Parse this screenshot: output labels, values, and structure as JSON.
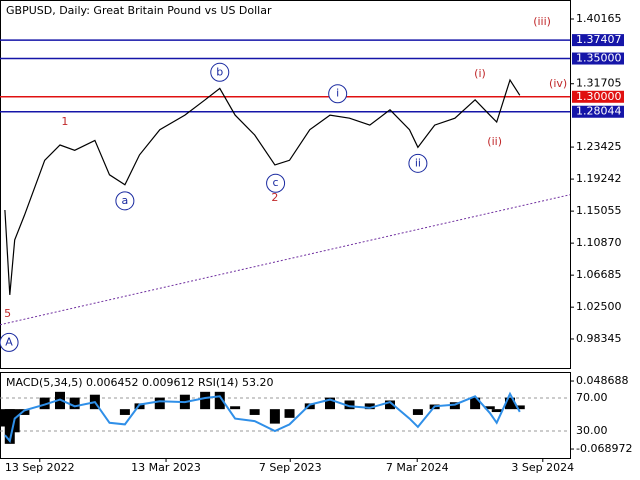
{
  "chart_data": [
    {
      "type": "line",
      "title": "GBPUSD, Daily:  Great Britain Pound vs US Dollar",
      "x": [
        -50,
        -43,
        -36,
        -22,
        7,
        29,
        50,
        79,
        100,
        122,
        143,
        172,
        208,
        237,
        258,
        280,
        308,
        337,
        358,
        387,
        416,
        444,
        473,
        502,
        530,
        542,
        566,
        595,
        624,
        645,
        655,
        674,
        688
      ],
      "series": [
        {
          "name": "GBPUSD",
          "color": "#000000",
          "values": [
            1.152,
            1.041,
            1.113,
            1.145,
            1.217,
            1.237,
            1.23,
            1.243,
            1.198,
            1.185,
            1.224,
            1.257,
            1.276,
            1.296,
            1.311,
            1.276,
            1.25,
            1.211,
            1.217,
            1.257,
            1.276,
            1.272,
            1.263,
            1.283,
            1.257,
            1.234,
            1.263,
            1.272,
            1.296,
            1.276,
            1.267,
            1.322,
            1.302
          ]
        }
      ],
      "xlim": [
        -57,
        760
      ],
      "ylim": [
        0.9455,
        1.4265
      ],
      "yticks": [
        1.40165,
        1.31705,
        1.23425,
        1.19242,
        1.15055,
        {
          "value": 1.1087,
          "label": "1.10870"
        },
        1.06685,
        {
          "value": 1.025,
          "label": "1.02500"
        },
        0.98345
      ],
      "levels": [
        {
          "value": 1.37407,
          "color": "#1515a8"
        },
        {
          "value": 1.35,
          "label": "1.35000",
          "color": "#1515a8"
        },
        {
          "value": 1.3,
          "label": "1.30000",
          "color": "#e01010"
        },
        {
          "value": 1.28044,
          "color": "#1515a8"
        }
      ],
      "trendline": {
        "x": [
          -57,
          760
        ],
        "y": [
          1.002,
          1.172
        ],
        "color": "#7030a0"
      },
      "annotations": [
        {
          "text": "1",
          "x": 36,
          "y": 1.267,
          "color": "#c0282a",
          "circled": false
        },
        {
          "text": "a",
          "x": 122,
          "y": 1.164,
          "color": "#1a2aa0",
          "circled": true
        },
        {
          "text": "b",
          "x": 258,
          "y": 1.332,
          "color": "#1a2aa0",
          "circled": true
        },
        {
          "text": "c",
          "x": 338,
          "y": 1.187,
          "color": "#1a2aa0",
          "circled": true
        },
        {
          "text": "2",
          "x": 337,
          "y": 1.168,
          "color": "#c0282a",
          "circled": false
        },
        {
          "text": "i",
          "x": 427,
          "y": 1.304,
          "color": "#1a2aa0",
          "circled": true
        },
        {
          "text": "ii",
          "x": 542,
          "y": 1.213,
          "color": "#1a2aa0",
          "circled": true
        },
        {
          "text": "(i)",
          "x": 631,
          "y": 1.33,
          "color": "#c0282a",
          "circled": false
        },
        {
          "text": "(ii)",
          "x": 652,
          "y": 1.241,
          "color": "#c0282a",
          "circled": false
        },
        {
          "text": "(iii)",
          "x": 720,
          "y": 1.398,
          "color": "#c0282a",
          "circled": false
        },
        {
          "text": "(iv)",
          "x": 743,
          "y": 1.317,
          "color": "#c0282a",
          "circled": false
        },
        {
          "text": "5",
          "x": -46,
          "y": 1.016,
          "color": "#c0282a",
          "circled": false
        },
        {
          "text": "A",
          "x": -44,
          "y": 0.979,
          "color": "#1a2aa0",
          "circled": true
        }
      ]
    },
    {
      "type": "line",
      "title": "MACD(5,34,5) 0.006452 0.009612 RSI(14) 53.20",
      "x": [
        -50,
        -43,
        -36,
        -22,
        7,
        29,
        50,
        79,
        100,
        122,
        143,
        172,
        208,
        237,
        258,
        280,
        308,
        337,
        358,
        387,
        416,
        444,
        473,
        502,
        530,
        542,
        566,
        595,
        624,
        645,
        655,
        674,
        688
      ],
      "series": [
        {
          "name": "RSI(14)",
          "color": "#2f8fe8",
          "axis": "y",
          "values": [
            25,
            18,
            45,
            55,
            62,
            68,
            60,
            65,
            40,
            38,
            62,
            66,
            65,
            70,
            72,
            45,
            42,
            30,
            38,
            62,
            68,
            60,
            58,
            65,
            45,
            35,
            60,
            62,
            72,
            52,
            40,
            75,
            53.2
          ]
        },
        {
          "name": "MACD(5,34,5)",
          "color": "#000000",
          "axis": "y2",
          "values": [
            -0.03,
            -0.06,
            -0.04,
            -0.01,
            0.02,
            0.03,
            0.02,
            0.025,
            0.0,
            -0.01,
            0.01,
            0.02,
            0.025,
            0.03,
            0.03,
            0.005,
            -0.01,
            -0.025,
            -0.015,
            0.01,
            0.02,
            0.015,
            0.01,
            0.015,
            0.0,
            -0.01,
            0.008,
            0.012,
            0.02,
            0.005,
            -0.005,
            0.02,
            0.006452
          ]
        }
      ],
      "xlim": [
        -57,
        760
      ],
      "xticks": [
        {
          "value": 0,
          "label": "13 Sep 2022"
        },
        {
          "value": 181,
          "label": "13 Mar 2023"
        },
        {
          "value": 359,
          "label": "7 Sep 2023"
        },
        {
          "value": 541,
          "label": "7 Mar 2024"
        },
        {
          "value": 721,
          "label": "3 Sep 2024"
        }
      ],
      "ylim": [
        -2.7,
        101.5
      ],
      "yticks": [
        {
          "value": 70,
          "label": "70.00"
        },
        {
          "value": 30,
          "label": "30.00"
        }
      ],
      "y2lim": [
        -0.0845,
        0.0643
      ],
      "y2ticks": [
        0.048688,
        -0.068972
      ]
    }
  ]
}
